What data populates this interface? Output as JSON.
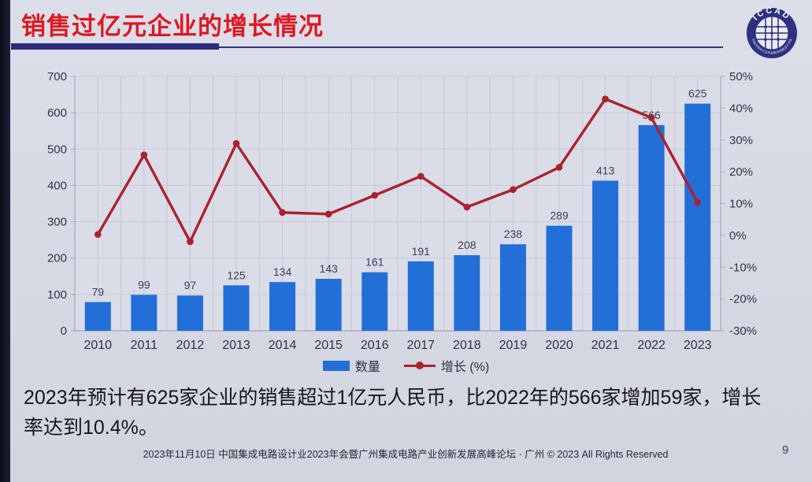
{
  "slide": {
    "title": "销售过亿元企业的增长情况",
    "page_number": "9",
    "footer": "2023年11月10日 中国集成电路设计业2023年会暨广州集成电路产业创新发展高峰论坛 · 广州 © 2023 All Rights Reserved",
    "body_text_line1": "2023年预计有625家企业的销售超过1亿元人民币，比2022年的566家增加59家，增长",
    "body_text_line2": "率达到10.4%。",
    "logo": {
      "text": "ICCAD",
      "ring_text": "中国半导体行业协会集成电路设计分会"
    }
  },
  "chart_data": {
    "type": "bar+line combo",
    "categories": [
      "2010",
      "2011",
      "2012",
      "2013",
      "2014",
      "2015",
      "2016",
      "2017",
      "2018",
      "2019",
      "2020",
      "2021",
      "2022",
      "2023"
    ],
    "series": [
      {
        "name": "数量",
        "type": "bar",
        "axis": "left",
        "color": "#226fd8",
        "values": [
          79,
          99,
          97,
          125,
          134,
          143,
          161,
          191,
          208,
          238,
          289,
          413,
          566,
          625
        ]
      },
      {
        "name": "增长 (%)",
        "type": "line",
        "axis": "right",
        "color": "#ab222c",
        "values": [
          0.3,
          25.3,
          -2.0,
          28.9,
          7.2,
          6.7,
          12.6,
          18.6,
          8.9,
          14.4,
          21.4,
          42.9,
          37.0,
          10.4
        ]
      }
    ],
    "left_axis": {
      "min": 0,
      "max": 700,
      "step": 100,
      "ticks": [
        "0",
        "100",
        "200",
        "300",
        "400",
        "500",
        "600",
        "700"
      ]
    },
    "right_axis": {
      "min": -30,
      "max": 50,
      "step": 10,
      "ticks": [
        "-30%",
        "-20%",
        "-10%",
        "0%",
        "10%",
        "20%",
        "30%",
        "40%",
        "50%"
      ]
    },
    "legend": [
      {
        "label": "数量",
        "marker": "bar"
      },
      {
        "label": "增长 (%)",
        "marker": "line"
      }
    ],
    "bar_data_labels": true,
    "grid": {
      "horizontal": "every 100 (left axis)",
      "vertical": "every half category"
    },
    "colors": {
      "plot_bg": "#dadce7",
      "grid": "#c5c9d8",
      "axis": "#a3a7bc"
    }
  }
}
